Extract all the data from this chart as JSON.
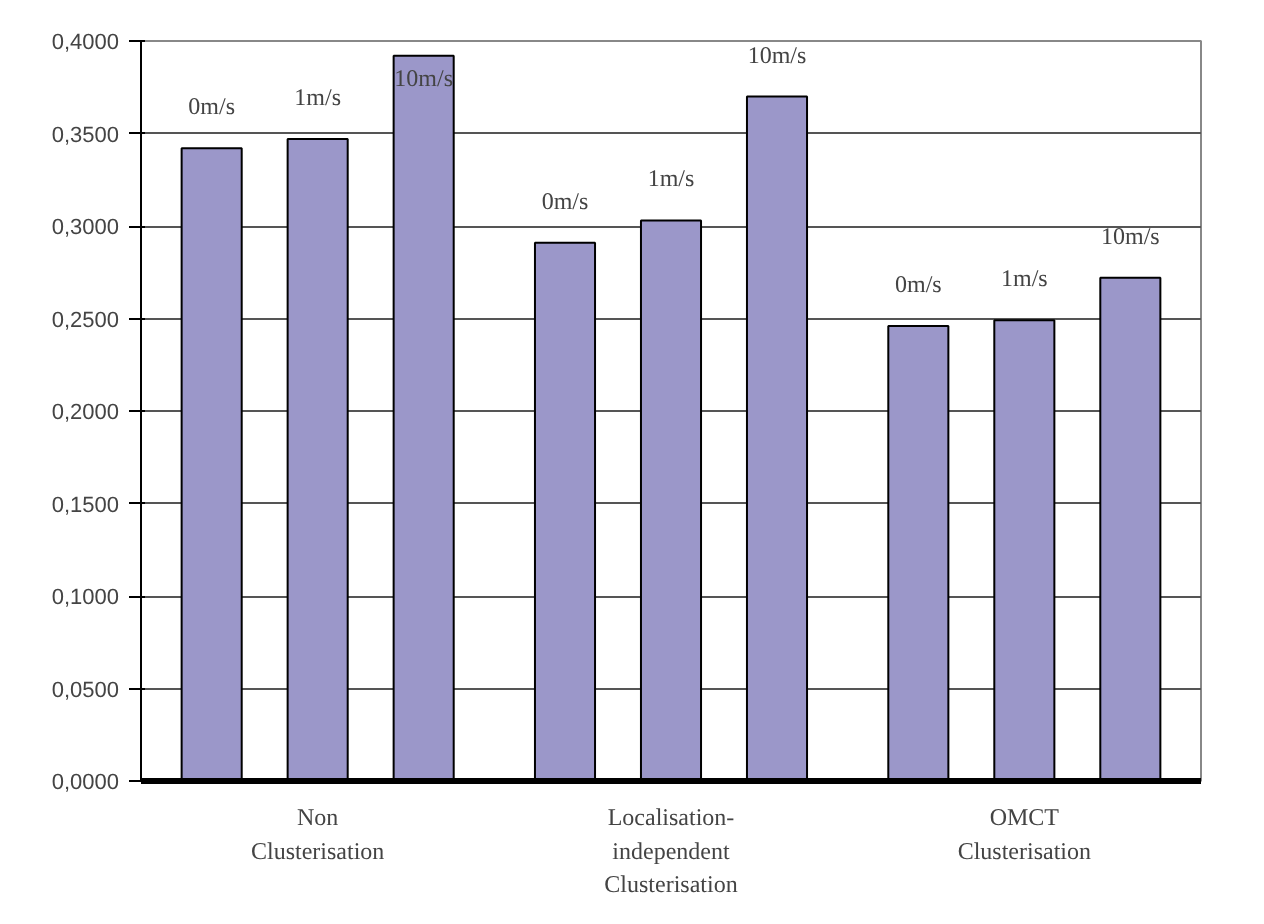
{
  "chart_data": {
    "type": "bar",
    "categories": [
      "Non\nClusterisation",
      "Localisation-\nindependent\nClusterisation",
      "OMCT\nClusterisation"
    ],
    "series": [
      {
        "name": "0m/s",
        "color": "#9b97c9",
        "values": [
          0.342,
          0.291,
          0.246
        ]
      },
      {
        "name": "1m/s",
        "color": "#9b97c9",
        "values": [
          0.347,
          0.303,
          0.249
        ]
      },
      {
        "name": "10m/s",
        "color": "#9b97c9",
        "values": [
          0.392,
          0.37,
          0.272
        ]
      }
    ],
    "ylim": [
      0,
      0.4
    ],
    "yticks": [
      {
        "value": 0,
        "label": "0,0000"
      },
      {
        "value": 0.05,
        "label": "0,0500"
      },
      {
        "value": 0.1,
        "label": "0,1000"
      },
      {
        "value": 0.15,
        "label": "0,1500"
      },
      {
        "value": 0.2,
        "label": "0,2000"
      },
      {
        "value": 0.25,
        "label": "0,2500"
      },
      {
        "value": 0.3,
        "label": "0,3000"
      },
      {
        "value": 0.35,
        "label": "0,3500"
      },
      {
        "value": 0.4,
        "label": "0,4000"
      }
    ],
    "grid": "y",
    "legend": false
  }
}
